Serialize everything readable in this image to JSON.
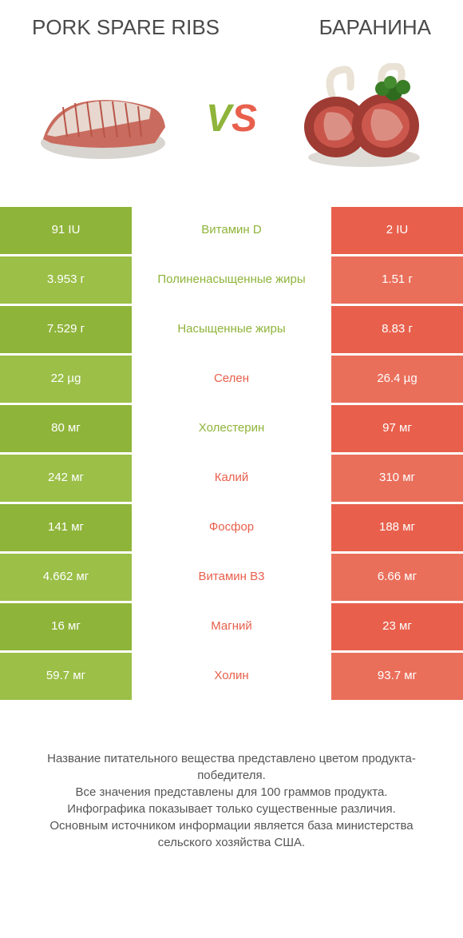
{
  "header": {
    "left_title": "PORK SPARE RIBS",
    "right_title": "БАРАНИНА"
  },
  "vs": {
    "v": "V",
    "s": "S"
  },
  "colors": {
    "green": "#8fb43a",
    "green_alt": "#9bbf47",
    "orange": "#e8604c",
    "orange_alt": "#ea6f5b",
    "label_green": "#8fb43a",
    "label_orange": "#e8604c"
  },
  "rows": [
    {
      "left": "91 IU",
      "mid": "Витамин D",
      "right": "2 IU",
      "winner": "left"
    },
    {
      "left": "3.953 г",
      "mid": "Полиненасыщенные жиры",
      "right": "1.51 г",
      "winner": "left"
    },
    {
      "left": "7.529 г",
      "mid": "Насыщенные жиры",
      "right": "8.83 г",
      "winner": "left"
    },
    {
      "left": "22 µg",
      "mid": "Селен",
      "right": "26.4 µg",
      "winner": "right"
    },
    {
      "left": "80 мг",
      "mid": "Холестерин",
      "right": "97 мг",
      "winner": "left"
    },
    {
      "left": "242 мг",
      "mid": "Калий",
      "right": "310 мг",
      "winner": "right"
    },
    {
      "left": "141 мг",
      "mid": "Фосфор",
      "right": "188 мг",
      "winner": "right"
    },
    {
      "left": "4.662 мг",
      "mid": "Витамин B3",
      "right": "6.66 мг",
      "winner": "right"
    },
    {
      "left": "16 мг",
      "mid": "Магний",
      "right": "23 мг",
      "winner": "right"
    },
    {
      "left": "59.7 мг",
      "mid": "Холин",
      "right": "93.7 мг",
      "winner": "right"
    }
  ],
  "footer": {
    "l1": "Название питательного вещества представлено цветом продукта-победителя.",
    "l2": "Все значения представлены для 100 граммов продукта.",
    "l3": "Инфографика показывает только существенные различия.",
    "l4": "Основным источником информации является база министерства сельского хозяйства США."
  }
}
